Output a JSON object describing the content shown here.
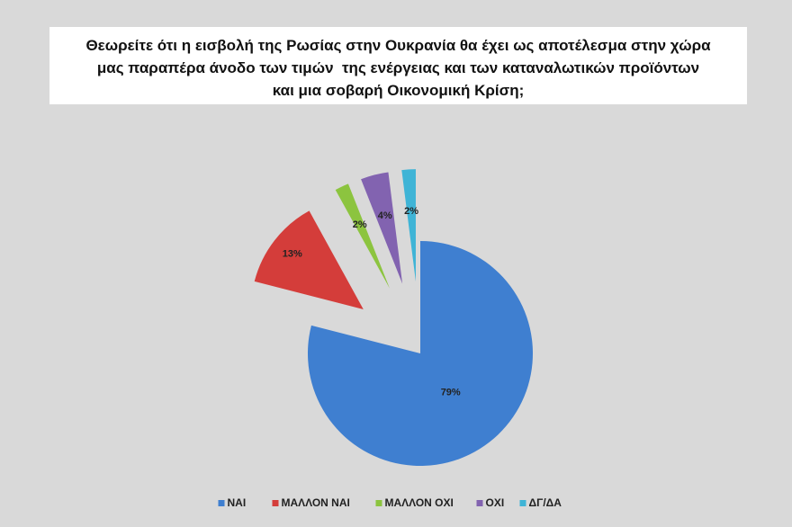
{
  "chart_data": {
    "type": "pie",
    "title": "Θεωρείτε ότι η εισβολή της Ρωσίας στην Ουκρανία θα έχει ως αποτέλεσμα στην χώρα μας παραπέρα άνοδο των τιμών  της ενέργειας και των καταναλωτικών προϊόντων και μια σοβαρή Οικονομική Κρίση;",
    "categories": [
      "ΝΑΙ",
      "ΜΑΛΛΟΝ ΝΑΙ",
      "ΜΑΛΛΟΝ ΟΧΙ",
      "ΟΧΙ",
      "ΔΓ/ΔΑ"
    ],
    "values": [
      79,
      13,
      2,
      4,
      2
    ],
    "value_labels": [
      "79%",
      "13%",
      "2%",
      "4%",
      "2%"
    ],
    "colors": [
      "#3f7fd0",
      "#d43d3a",
      "#8cc43f",
      "#8263b0",
      "#3fb4d6"
    ],
    "legend": "bottom"
  }
}
